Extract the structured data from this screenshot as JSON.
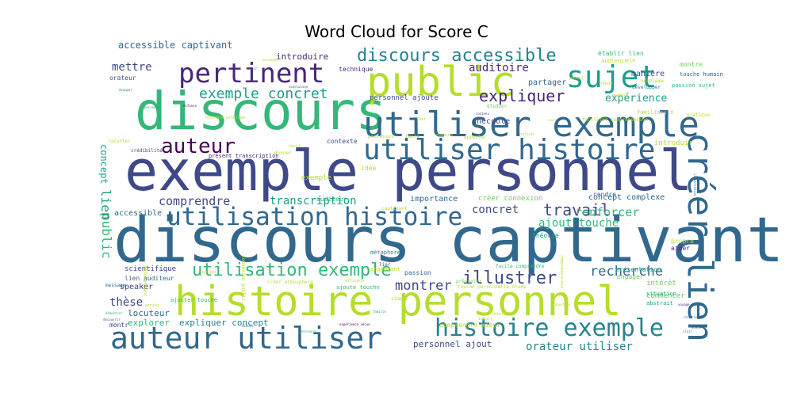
{
  "chart_data": {
    "type": "word_cloud",
    "title": "Word Cloud for Score C",
    "background": "#ffffff",
    "colormap": "viridis",
    "words": [
      {
        "text": "discours captivant",
        "weight": 100
      },
      {
        "text": "exemple personnel",
        "weight": 95
      },
      {
        "text": "histoire personnel",
        "weight": 80
      },
      {
        "text": "discours",
        "weight": 75
      },
      {
        "text": "public",
        "weight": 62
      },
      {
        "text": "utiliser exemple",
        "weight": 58
      },
      {
        "text": "auteur utiliser",
        "weight": 55
      },
      {
        "text": "créer lien",
        "weight": 50
      },
      {
        "text": "utiliser histoire",
        "weight": 45
      },
      {
        "text": "utilisation histoire",
        "weight": 40
      },
      {
        "text": "histoire exemple",
        "weight": 40
      },
      {
        "text": "pertinent",
        "weight": 40
      },
      {
        "text": "sujet",
        "weight": 38
      },
      {
        "text": "auteur",
        "weight": 33
      },
      {
        "text": "utilisation exemple",
        "weight": 30
      },
      {
        "text": "discours accessible",
        "weight": 28
      },
      {
        "text": "exemple concret",
        "weight": 24
      },
      {
        "text": "expliquer",
        "weight": 24
      },
      {
        "text": "illustrer",
        "weight": 24
      },
      {
        "text": "travail",
        "weight": 22
      },
      {
        "text": "recherche",
        "weight": 22
      },
      {
        "text": "montrer",
        "weight": 20
      },
      {
        "text": "public",
        "weight": 18
      },
      {
        "text": "lien",
        "weight": 18
      },
      {
        "text": "comprendre",
        "weight": 18
      },
      {
        "text": "renforcer",
        "weight": 18
      },
      {
        "text": "orateur utiliser",
        "weight": 16
      },
      {
        "text": "mettre",
        "weight": 16
      },
      {
        "text": "auditoire",
        "weight": 16
      },
      {
        "text": "ajout touche",
        "weight": 16
      },
      {
        "text": "concret",
        "weight": 15
      },
      {
        "text": "transcription",
        "weight": 15
      },
      {
        "text": "expérience",
        "weight": 14
      },
      {
        "text": "thèse",
        "weight": 14
      },
      {
        "text": "concept",
        "weight": 14
      },
      {
        "text": "accessible captivant",
        "weight": 13
      },
      {
        "text": "introduire",
        "weight": 12
      },
      {
        "text": "anecdote",
        "weight": 12
      },
      {
        "text": "partager",
        "weight": 12
      },
      {
        "text": "concept complexe",
        "weight": 12
      },
      {
        "text": "locuteur",
        "weight": 12
      },
      {
        "text": "explorer",
        "weight": 12
      },
      {
        "text": "expliquer concept",
        "weight": 11
      },
      {
        "text": "personnel ajout",
        "weight": 11
      },
      {
        "text": "établir lien",
        "weight": 11
      },
      {
        "text": "manière",
        "weight": 11
      },
      {
        "text": "accessible",
        "weight": 11
      },
      {
        "text": "importance",
        "weight": 11
      },
      {
        "text": "créer connexion",
        "weight": 10
      },
      {
        "text": "scientifique",
        "weight": 10
      },
      {
        "text": "speaker",
        "weight": 10
      },
      {
        "text": "lien auditeur",
        "weight": 10
      },
      {
        "text": "personnel ajoute",
        "weight": 10
      },
      {
        "text": "exemple",
        "weight": 10
      },
      {
        "text": "idée",
        "weight": 10
      },
      {
        "text": "contexte",
        "weight": 10
      },
      {
        "text": "auditeur",
        "weight": 9
      },
      {
        "text": "comprendre mieux",
        "weight": 9
      },
      {
        "text": "montre",
        "weight": 9
      },
      {
        "text": "introduir",
        "weight": 9
      },
      {
        "text": "présentation",
        "weight": 9
      },
      {
        "text": "intérêt",
        "weight": 9
      },
      {
        "text": "commencer",
        "weight": 9
      },
      {
        "text": "engager",
        "weight": 8
      },
      {
        "text": "aider",
        "weight": 8
      },
      {
        "text": "propre",
        "weight": 8
      },
      {
        "text": "rendre",
        "weight": 8
      },
      {
        "text": "théorie",
        "weight": 8
      },
      {
        "text": "orateur",
        "weight": 8
      },
      {
        "text": "montr",
        "weight": 8
      },
      {
        "text": "technique",
        "weight": 8
      },
      {
        "text": "passion",
        "weight": 8
      },
      {
        "text": "métaphore",
        "weight": 8
      },
      {
        "text": "engageant",
        "weight": 8
      },
      {
        "text": "situation",
        "weight": 7
      },
      {
        "text": "abstrait",
        "weight": 7
      },
      {
        "text": "ajouter touche",
        "weight": 7
      },
      {
        "text": "présent transcription",
        "weight": 7
      },
      {
        "text": "ajoute touche",
        "weight": 7
      },
      {
        "text": "touche humain",
        "weight": 7
      },
      {
        "text": "passion sujet",
        "weight": 7
      },
      {
        "text": "audience",
        "weight": 7
      },
      {
        "text": "familiarité",
        "weight": 6
      },
      {
        "text": "faciliter compréhension",
        "weight": 6
      },
      {
        "text": "problème",
        "weight": 6
      },
      {
        "text": "développer",
        "weight": 6
      },
      {
        "text": "pratique",
        "weight": 6
      },
      {
        "text": "vie",
        "weight": 6
      },
      {
        "text": "étudier",
        "weight": 6
      },
      {
        "text": "captivant",
        "weight": 6
      },
      {
        "text": "processus",
        "weight": 6
      },
      {
        "text": "simple",
        "weight": 6
      },
      {
        "text": "intéressant",
        "weight": 6
      },
      {
        "text": "présenter",
        "weight": 6
      },
      {
        "text": "crédibilité",
        "weight": 6
      },
      {
        "text": "message",
        "weight": 6
      },
      {
        "text": "lier",
        "weight": 6
      },
      {
        "text": "facile comprendre",
        "weight": 6
      },
      {
        "text": "connexion public",
        "weight": 6
      },
      {
        "text": "touche personnelle étude",
        "weight": 5
      },
      {
        "text": "créer atmosphère",
        "weight": 5
      },
      {
        "text": "apporter",
        "weight": 5
      },
      {
        "text": "faire",
        "weight": 5
      },
      {
        "text": "donner",
        "weight": 5
      },
      {
        "text": "raconter",
        "weight": 5
      },
      {
        "text": "projet",
        "weight": 5
      },
      {
        "text": "efficace",
        "weight": 5
      },
      {
        "text": "parler",
        "weight": 5
      },
      {
        "text": "domaine",
        "weight": 5
      },
      {
        "text": "résoudre problème",
        "weight": 5
      },
      {
        "text": "compréhensible",
        "weight": 5
      },
      {
        "text": "interagir",
        "weight": 5
      },
      {
        "text": "impact",
        "weight": 5
      },
      {
        "text": "récit",
        "weight": 5
      },
      {
        "text": "fait",
        "weight": 5
      },
      {
        "text": "moment",
        "weight": 5
      },
      {
        "text": "rendu",
        "weight": 5
      },
      {
        "text": "parent",
        "weight": 5
      },
      {
        "text": "notion",
        "weight": 5
      },
      {
        "text": "essayer",
        "weight": 5
      },
      {
        "text": "savoir",
        "weight": 5
      },
      {
        "text": "contenu",
        "weight": 5
      },
      {
        "text": "cours",
        "weight": 5
      },
      {
        "text": "entendre",
        "weight": 4
      },
      {
        "text": "question",
        "weight": 4
      },
      {
        "text": "relation",
        "weight": 4
      },
      {
        "text": "écoute",
        "weight": 4
      },
      {
        "text": "découvrir",
        "weight": 4
      },
      {
        "text": "illustration",
        "weight": 4
      },
      {
        "text": "scène",
        "weight": 4
      },
      {
        "text": "clair",
        "weight": 4
      },
      {
        "text": "voyage",
        "weight": 4
      },
      {
        "text": "famille",
        "weight": 4
      },
      {
        "text": "expérience vécue",
        "weight": 4
      },
      {
        "text": "démontrer",
        "weight": 4
      },
      {
        "text": "évoquer",
        "weight": 4
      },
      {
        "text": "personne",
        "weight": 4
      },
      {
        "text": "enfance",
        "weight": 4
      },
      {
        "text": "conclusion",
        "weight": 4
      },
      {
        "text": "réflexion",
        "weight": 4
      },
      {
        "text": "point",
        "weight": 4
      },
      {
        "text": "souvenir",
        "weight": 4
      },
      {
        "text": "argument",
        "weight": 4
      },
      {
        "text": "public cible",
        "weight": 4
      },
      {
        "text": "émotion",
        "weight": 4
      }
    ]
  }
}
